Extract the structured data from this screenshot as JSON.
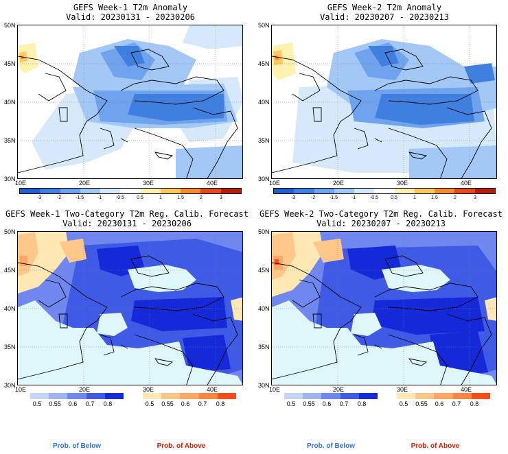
{
  "panels": [
    {
      "title": "GEFS Week-1 T2m Anomaly",
      "valid": "Valid: 20230131 - 20230206"
    },
    {
      "title": "GEFS Week-2 T2m Anomaly",
      "valid": "Valid: 20230207 - 20230213"
    },
    {
      "title": "GEFS Week-1 Two-Category T2m Reg. Calib. Forecast",
      "valid": "Valid: 20230131 - 20230206"
    },
    {
      "title": "GEFS Week-2 Two-Category T2m Reg. Calib. Forecast",
      "valid": "Valid: 20230207 - 20230213"
    }
  ],
  "lat_labels": [
    "50N",
    "45N",
    "40N",
    "35N",
    "30N"
  ],
  "lon_labels": [
    "10E",
    "20E",
    "30E",
    "40E"
  ],
  "anomaly_scale": {
    "ticks": [
      "-3",
      "-2",
      "-1.5",
      "-1",
      "-0.5",
      "0.5",
      "1",
      "1.5",
      "2",
      "3"
    ],
    "colors": [
      "#1f5fcf",
      "#3f7fe0",
      "#6fa3ee",
      "#a4c8f6",
      "#d6e9fb",
      "#ffffff",
      "#fff2b0",
      "#ffc860",
      "#ff8a30",
      "#e54a18",
      "#b81c0c"
    ]
  },
  "below_scale": {
    "ticks": [
      "0.5",
      "0.55",
      "0.6",
      "0.7",
      "0.8"
    ],
    "colors": [
      "#c6d4f7",
      "#9fb3f3",
      "#6f87ee",
      "#3f5be6",
      "#1629d8"
    ],
    "label": "Prob. of Below",
    "label_color": "#2f6fe0"
  },
  "above_scale": {
    "ticks": [
      "0.5",
      "0.55",
      "0.6",
      "0.7",
      "0.8"
    ],
    "colors": [
      "#ffe8b4",
      "#ffc88a",
      "#ffa866",
      "#ff8442",
      "#ff4a1a"
    ],
    "label": "Prob. of Above",
    "label_color": "#e01a00"
  },
  "colors": {
    "sea_prob": "#dff6fb",
    "land_neutral": "#ffffff",
    "border": "#000000"
  }
}
